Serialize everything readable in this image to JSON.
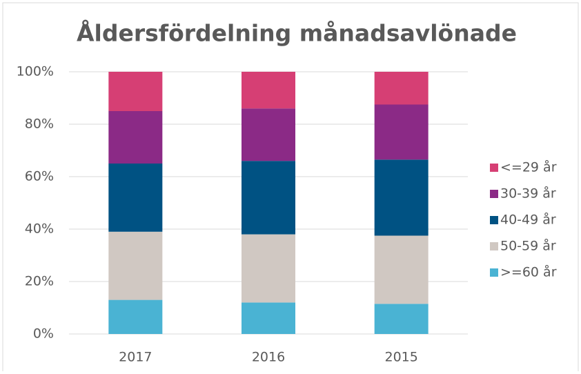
{
  "chart_data": {
    "type": "stacked_bar",
    "title": "Åldersfördelning månadsavlönade",
    "categories": [
      "2017",
      "2016",
      "2015"
    ],
    "series": [
      {
        "name": ">=60 år",
        "color": "#4ab3d3",
        "values": [
          13,
          12,
          11.5
        ]
      },
      {
        "name": "50-59 år",
        "color": "#d0c8c2",
        "values": [
          26,
          26,
          26
        ]
      },
      {
        "name": "40-49 år",
        "color": "#005283",
        "values": [
          26,
          28,
          29
        ]
      },
      {
        "name": "30-39 år",
        "color": "#8b2a86",
        "values": [
          20,
          20,
          21
        ]
      },
      {
        "name": "<=29 år",
        "color": "#d63f74",
        "values": [
          15,
          14,
          12.5
        ]
      }
    ],
    "ylim": [
      0,
      100
    ],
    "yticks": [
      {
        "value": 0,
        "label": "0%"
      },
      {
        "value": 20,
        "label": "20%"
      },
      {
        "value": 40,
        "label": "40%"
      },
      {
        "value": 60,
        "label": "60%"
      },
      {
        "value": 80,
        "label": "80%"
      },
      {
        "value": 100,
        "label": "100%"
      }
    ],
    "grid": true,
    "legend": "right"
  }
}
